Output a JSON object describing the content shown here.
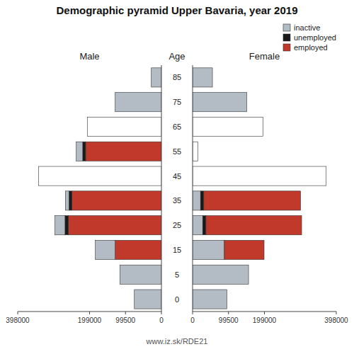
{
  "chart_data": [
    {
      "type": "bar",
      "orientation": "horizontal",
      "stacked": true,
      "title": "Demographic pyramid Upper Bavaria, year 2019",
      "subtitle": "Male",
      "annotations": [
        "www.iz.sk/RDE21"
      ],
      "categories": [
        "0",
        "5",
        "15",
        "25",
        "35",
        "45",
        "55",
        "65",
        "75",
        "85"
      ],
      "xlim": [
        398000,
        0
      ],
      "xticks": [
        398000,
        199000,
        99500,
        0
      ],
      "series": [
        {
          "name": "employed",
          "color": "#c0392b",
          "values": [
            0,
            0,
            128000,
            258000,
            248000,
            0,
            210000,
            0,
            0,
            0
          ]
        },
        {
          "name": "unemployed",
          "color": "#1a1a1a",
          "values": [
            0,
            0,
            0,
            9000,
            8000,
            0,
            8000,
            0,
            0,
            0
          ]
        },
        {
          "name": "inactive",
          "color": "#b3bcc4",
          "colors": [
            "#b3bcc4",
            "#b3bcc4",
            "#b3bcc4",
            "#b3bcc4",
            "#b3bcc4",
            "#ffffff",
            "#b3bcc4",
            "#ffffff",
            "#b3bcc4",
            "#b3bcc4"
          ],
          "values": [
            75000,
            115000,
            55000,
            28000,
            10000,
            340000,
            18000,
            205000,
            128000,
            28000
          ]
        }
      ]
    },
    {
      "type": "bar",
      "orientation": "horizontal",
      "stacked": true,
      "subtitle": "Female",
      "ylabel": "Age",
      "legend": "upper right",
      "categories": [
        "0",
        "5",
        "15",
        "25",
        "35",
        "45",
        "55",
        "65",
        "75",
        "85"
      ],
      "xlim": [
        0,
        398000
      ],
      "xticks": [
        0,
        99500,
        199000,
        398000
      ],
      "series": [
        {
          "name": "inactive",
          "color": "#b3bcc4",
          "colors": [
            "#b3bcc4",
            "#b3bcc4",
            "#b3bcc4",
            "#b3bcc4",
            "#b3bcc4",
            "#ffffff",
            "#ffffff",
            "#ffffff",
            "#b3bcc4",
            "#b3bcc4"
          ],
          "values": [
            95000,
            155000,
            88000,
            28000,
            22000,
            370000,
            15000,
            195000,
            150000,
            55000
          ]
        },
        {
          "name": "unemployed",
          "color": "#1a1a1a",
          "values": [
            0,
            0,
            0,
            9000,
            9000,
            0,
            0,
            0,
            0,
            0
          ]
        },
        {
          "name": "employed",
          "color": "#c0392b",
          "values": [
            0,
            0,
            110000,
            265000,
            268000,
            0,
            0,
            0,
            0,
            0
          ]
        }
      ]
    }
  ]
}
